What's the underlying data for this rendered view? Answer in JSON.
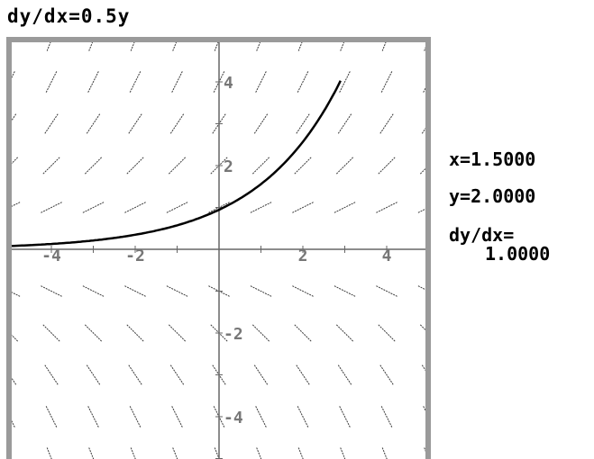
{
  "equation_label": "dy/dx=0.5y",
  "readout": {
    "x": "x=1.5000",
    "y": "y=2.0000",
    "slope_label": "dy/dx=",
    "slope_value": "1.0000"
  },
  "graph": {
    "slope_coefficient": 0.5,
    "x_range": [
      -5.4,
      5.4
    ],
    "y_range": [
      -5.4,
      5.4
    ],
    "tick_labels_x": [
      "-4",
      "-2",
      "2",
      "4"
    ],
    "tick_labels_y": [
      "4",
      "2",
      "-2",
      "-4"
    ],
    "field_x_step": 1,
    "field_y_step": 1,
    "solution_curve": {
      "passes_through": [
        1.5,
        2.0
      ],
      "x_range": [
        -5.4,
        2.9
      ]
    },
    "colors": {
      "curve": "#000000",
      "field": "#3a3a3a",
      "axis": "#666666",
      "frame": "#9a9a9a"
    }
  }
}
